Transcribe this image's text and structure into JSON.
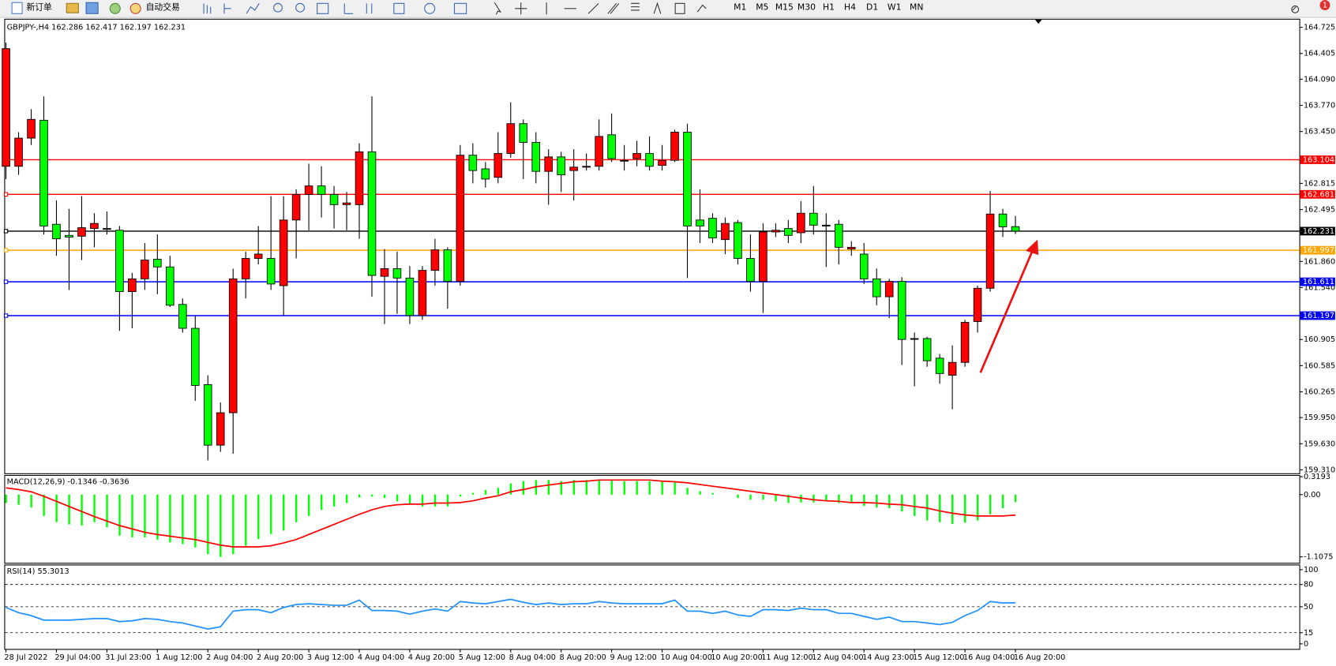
{
  "toolbar": {
    "new_order": "新订单",
    "auto_trading": "自动交易",
    "timeframes": [
      "M1",
      "M5",
      "M15",
      "M30",
      "H1",
      "H4",
      "D1",
      "W1",
      "MN"
    ],
    "notifications": "1"
  },
  "chart_data": [
    {
      "type": "candlestick",
      "title": "GBPJPY-,H4  162.286 162.417 162.197 162.231",
      "categories": [
        "28 Jul 2022",
        null,
        null,
        null,
        "29 Jul 04:00",
        null,
        null,
        null,
        "31 Jul 23:00",
        null,
        null,
        null,
        "1 Aug 12:00",
        null,
        null,
        null,
        "2 Aug 04:00",
        null,
        null,
        null,
        "2 Aug 20:00",
        null,
        null,
        null,
        "3 Aug 12:00",
        null,
        null,
        null,
        "4 Aug 04:00",
        null,
        null,
        null,
        "4 Aug 20:00",
        null,
        null,
        null,
        "5 Aug 12:00",
        null,
        null,
        null,
        "8 Aug 04:00",
        null,
        null,
        null,
        "8 Aug 20:00",
        null,
        null,
        null,
        "9 Aug 12:00",
        null,
        null,
        null,
        "10 Aug 04:00",
        null,
        null,
        null,
        "10 Aug 20:00",
        null,
        null,
        null,
        "11 Aug 12:00",
        null,
        null,
        null,
        "12 Aug 04:00",
        null,
        null,
        null,
        "14 Aug 23:00",
        null,
        null,
        null,
        "15 Aug 12:00",
        null,
        null,
        null,
        "16 Aug 04:00",
        null,
        null,
        null,
        "16 Aug 20:00"
      ],
      "open": [
        163.024,
        163.024,
        163.369,
        163.588,
        162.315,
        162.179,
        162.169,
        162.263,
        162.263,
        162.242,
        161.491,
        161.647,
        161.887,
        161.793,
        161.334,
        161.042,
        160.353,
        159.612,
        160.009,
        161.647,
        161.897,
        161.897,
        161.564,
        162.367,
        162.68,
        162.784,
        162.68,
        162.555,
        162.555,
        163.202,
        161.678,
        161.772,
        161.657,
        161.198,
        161.751,
        162.002,
        161.616,
        163.16,
        162.993,
        162.889,
        163.181,
        163.546,
        163.317,
        162.962,
        163.139,
        162.972,
        163.014,
        163.024,
        163.41,
        163.097,
        163.118,
        163.181,
        163.035,
        163.097,
        163.442,
        162.367,
        162.388,
        162.127,
        162.336,
        161.897,
        161.616,
        162.221,
        162.263,
        162.211,
        162.45,
        162.304,
        162.315,
        162.012,
        161.95,
        161.647,
        161.428,
        161.616,
        160.917,
        160.917,
        160.677,
        160.468,
        160.625,
        161.125,
        161.532,
        162.44,
        162.286
      ],
      "high": [
        164.537,
        163.442,
        163.723,
        163.88,
        162.607,
        162.503,
        162.659,
        162.45,
        162.471,
        162.294,
        161.72,
        162.085,
        162.19,
        161.929,
        161.407,
        161.198,
        160.468,
        160.134,
        161.772,
        161.981,
        162.294,
        162.659,
        162.659,
        162.743,
        163.056,
        163.024,
        162.784,
        162.711,
        163.306,
        163.88,
        162.012,
        161.981,
        161.803,
        161.803,
        162.137,
        162.033,
        163.285,
        163.306,
        163.077,
        163.442,
        163.807,
        163.598,
        163.442,
        163.233,
        163.202,
        163.233,
        163.181,
        163.598,
        163.671,
        163.285,
        163.337,
        163.39,
        163.285,
        163.473,
        163.546,
        162.743,
        162.45,
        162.398,
        162.367,
        162.19,
        162.325,
        162.325,
        162.367,
        162.597,
        162.784,
        162.45,
        162.367,
        162.106,
        162.085,
        161.772,
        161.647,
        161.668,
        160.99,
        160.938,
        160.729,
        160.833,
        161.146,
        161.564,
        162.722,
        162.503,
        162.417
      ],
      "low": [
        162.868,
        162.92,
        163.285,
        162.19,
        161.929,
        161.511,
        161.877,
        162.033,
        162.19,
        161.011,
        161.042,
        161.511,
        161.459,
        161.303,
        160.99,
        160.155,
        159.425,
        159.529,
        159.508,
        161.407,
        161.824,
        161.511,
        161.198,
        161.897,
        162.242,
        162.398,
        162.263,
        162.242,
        162.137,
        161.428,
        161.094,
        161.219,
        161.094,
        161.146,
        161.564,
        161.282,
        161.564,
        162.816,
        162.764,
        162.816,
        163.129,
        162.868,
        162.816,
        162.555,
        162.711,
        162.607,
        162.972,
        162.972,
        163.077,
        162.972,
        163.024,
        162.972,
        162.972,
        163.077,
        161.657,
        162.085,
        162.085,
        161.95,
        161.824,
        161.491,
        161.23,
        162.158,
        162.085,
        162.085,
        162.19,
        161.793,
        161.824,
        161.929,
        161.584,
        161.324,
        161.167,
        160.593,
        160.332,
        160.572,
        160.364,
        160.051,
        160.572,
        160.99,
        161.491,
        162.158,
        162.197
      ],
      "close": [
        164.464,
        163.369,
        163.598,
        162.294,
        162.137,
        162.158,
        162.273,
        162.325,
        162.263,
        161.491,
        161.647,
        161.877,
        161.793,
        161.324,
        161.042,
        160.343,
        159.612,
        160.009,
        161.647,
        161.897,
        161.95,
        161.584,
        162.367,
        162.68,
        162.784,
        162.68,
        162.555,
        162.576,
        163.202,
        161.689,
        161.772,
        161.657,
        161.198,
        161.751,
        162.002,
        161.616,
        163.16,
        162.972,
        162.868,
        163.181,
        163.546,
        163.317,
        162.962,
        163.139,
        162.92,
        163.014,
        163.024,
        163.39,
        163.118,
        163.097,
        163.181,
        163.024,
        163.097,
        163.442,
        162.294,
        162.294,
        162.148,
        162.325,
        161.897,
        161.616,
        162.221,
        162.242,
        162.179,
        162.45,
        162.304,
        162.304,
        162.033,
        162.033,
        161.647,
        161.428,
        161.616,
        160.906,
        160.917,
        160.645,
        160.489,
        160.625,
        161.115,
        161.532,
        162.44,
        162.284,
        162.231
      ],
      "up_color": "#ff0000",
      "down_color": "#00ff00",
      "ylim": [
        159.31,
        164.725
      ],
      "yticks": [
        164.725,
        164.405,
        {
          "value": 164.09,
          "label": "164.090"
        },
        {
          "value": 163.77,
          "label": "163.770"
        },
        {
          "value": 163.45,
          "label": "163.450"
        },
        162.815,
        162.495,
        {
          "value": 161.86,
          "label": "161.860"
        },
        {
          "value": 161.54,
          "label": "161.540"
        },
        160.905,
        160.585,
        160.265,
        {
          "value": 159.95,
          "label": "159.950"
        },
        {
          "value": 159.63,
          "label": "159.630"
        },
        {
          "value": 159.31,
          "label": "159.310"
        }
      ],
      "hlines": [
        {
          "value": 163.104,
          "color": "#ff0000"
        },
        {
          "value": 162.681,
          "color": "#ff0000"
        },
        {
          "value": 162.231,
          "color": "#000000"
        },
        {
          "value": 161.997,
          "color": "#ffa500"
        },
        {
          "value": 161.611,
          "color": "#0000ff"
        },
        {
          "value": 161.197,
          "color": "#0000ff"
        }
      ]
    },
    {
      "type": "macd",
      "title": "MACD(12,26,9) -0.1346 -0.3636",
      "series": [
        {
          "type": "bar",
          "color": "#00ff00",
          "values": [
            -0.15,
            -0.18,
            -0.23,
            -0.38,
            -0.49,
            -0.53,
            -0.55,
            -0.49,
            -0.58,
            -0.73,
            -0.76,
            -0.76,
            -0.8,
            -0.85,
            -0.88,
            -0.94,
            -1.06,
            -1.1075,
            -1.06,
            -0.91,
            -0.79,
            -0.7,
            -0.64,
            -0.49,
            -0.38,
            -0.27,
            -0.21,
            -0.15,
            -0.05,
            -0.03,
            -0.06,
            -0.12,
            -0.18,
            -0.21,
            -0.21,
            -0.21,
            -0.03,
            0.03,
            0.08,
            0.12,
            0.2,
            0.24,
            0.26,
            0.26,
            0.24,
            0.26,
            0.26,
            0.26,
            0.26,
            0.24,
            0.24,
            0.24,
            0.23,
            0.23,
            0.12,
            0.06,
            0.03,
            0.0,
            -0.06,
            -0.09,
            -0.09,
            -0.12,
            -0.15,
            -0.14,
            -0.14,
            -0.12,
            -0.15,
            -0.15,
            -0.2,
            -0.23,
            -0.24,
            -0.3,
            -0.38,
            -0.46,
            -0.49,
            -0.52,
            -0.5,
            -0.46,
            -0.35,
            -0.24,
            -0.1346
          ]
        },
        {
          "type": "line",
          "color": "#ff0000",
          "values": [
            0.12,
            0.09,
            0.05,
            -0.03,
            -0.12,
            -0.21,
            -0.3,
            -0.39,
            -0.47,
            -0.55,
            -0.61,
            -0.67,
            -0.71,
            -0.74,
            -0.77,
            -0.8,
            -0.85,
            -0.9,
            -0.93,
            -0.93,
            -0.93,
            -0.91,
            -0.86,
            -0.8,
            -0.71,
            -0.62,
            -0.53,
            -0.44,
            -0.35,
            -0.27,
            -0.21,
            -0.18,
            -0.17,
            -0.17,
            -0.15,
            -0.15,
            -0.14,
            -0.11,
            -0.06,
            -0.02,
            0.05,
            0.09,
            0.14,
            0.17,
            0.2,
            0.23,
            0.24,
            0.26,
            0.26,
            0.26,
            0.26,
            0.26,
            0.24,
            0.23,
            0.21,
            0.18,
            0.15,
            0.12,
            0.09,
            0.06,
            0.03,
            0.0,
            -0.03,
            -0.06,
            -0.09,
            -0.11,
            -0.12,
            -0.14,
            -0.14,
            -0.15,
            -0.17,
            -0.18,
            -0.21,
            -0.24,
            -0.29,
            -0.33,
            -0.36,
            -0.38,
            -0.38,
            -0.38,
            -0.3636
          ]
        }
      ],
      "ylim": [
        -1.1075,
        0.3193
      ],
      "yticks": [
        0.3193,
        {
          "value": 0,
          "label": "0.00"
        },
        -1.1075
      ]
    },
    {
      "type": "line",
      "title": "RSI(14) 55.3013",
      "color": "#1e90ff",
      "values": [
        49,
        42,
        38,
        32,
        32,
        32,
        33,
        34,
        34,
        30,
        31,
        34,
        33,
        30,
        28,
        24,
        20,
        23,
        44,
        46,
        46,
        42,
        49,
        53,
        54,
        53,
        52,
        52,
        59,
        45,
        45,
        44,
        40,
        44,
        47,
        44,
        57,
        55,
        54,
        57,
        60,
        56,
        53,
        55,
        53,
        54,
        54,
        57,
        55,
        54,
        54,
        54,
        54,
        59,
        44,
        44,
        41,
        44,
        39,
        37,
        46,
        46,
        45,
        48,
        46,
        46,
        41,
        41,
        37,
        33,
        36,
        30,
        30,
        28,
        26,
        29,
        38,
        45,
        57,
        55,
        55.3013
      ],
      "ylim": [
        0,
        100
      ],
      "yticks": [
        0,
        15,
        50,
        80,
        100
      ],
      "grid": "dashed"
    }
  ]
}
